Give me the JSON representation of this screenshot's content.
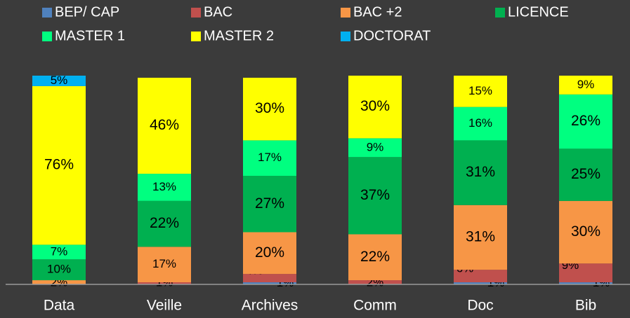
{
  "chart_data": {
    "type": "stacked-bar",
    "categories": [
      "Data",
      "Veille",
      "Archives",
      "Comm",
      "Doc",
      "Bib"
    ],
    "ylim": [
      0,
      100
    ],
    "series": [
      {
        "name": "BEP/ CAP",
        "color": "#4f81bd",
        "values": [
          0,
          0,
          1,
          0,
          1,
          1
        ],
        "value_labels": [
          null,
          null,
          "1%",
          null,
          "1%",
          "1%"
        ]
      },
      {
        "name": "BAC",
        "color": "#c0504d",
        "values": [
          0,
          1,
          4,
          2,
          6,
          9
        ],
        "value_labels": [
          null,
          "1%",
          "4%",
          "2%",
          "6%",
          "9%"
        ]
      },
      {
        "name": "BAC +2",
        "color": "#f79646",
        "values": [
          2,
          17,
          20,
          22,
          31,
          30
        ],
        "value_labels": [
          "2%",
          "17%",
          "20%",
          "22%",
          "31%",
          "30%"
        ]
      },
      {
        "name": "LICENCE",
        "color": "#00b050",
        "values": [
          10,
          22,
          27,
          37,
          31,
          25
        ],
        "value_labels": [
          "10%",
          "22%",
          "27%",
          "37%",
          "31%",
          "25%"
        ]
      },
      {
        "name": "MASTER 1",
        "color": "#00ff80",
        "values": [
          7,
          13,
          17,
          9,
          16,
          26
        ],
        "value_labels": [
          "7%",
          "13%",
          "17%",
          "9%",
          "16%",
          "26%"
        ]
      },
      {
        "name": "MASTER 2",
        "color": "#ffff00",
        "values": [
          76,
          46,
          30,
          30,
          15,
          9
        ],
        "value_labels": [
          "76%",
          "46%",
          "30%",
          "30%",
          "15%",
          "9%"
        ]
      },
      {
        "name": "DOCTORAT",
        "color": "#00b0f0",
        "values": [
          5,
          0,
          0,
          0,
          0,
          0
        ],
        "value_labels": [
          "5%",
          null,
          null,
          null,
          null,
          null
        ]
      }
    ]
  }
}
